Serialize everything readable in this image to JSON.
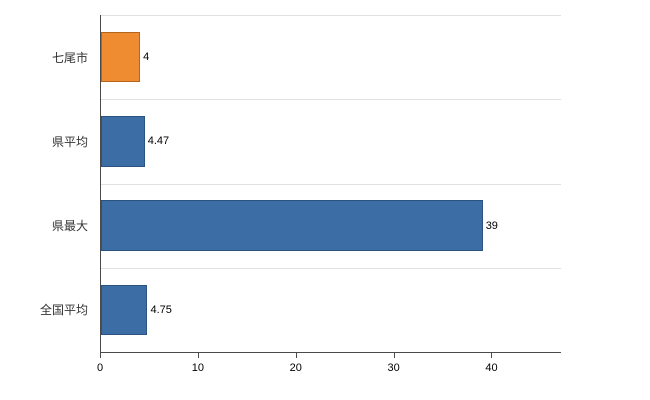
{
  "chart_data": {
    "type": "bar",
    "orientation": "horizontal",
    "title": "",
    "xlabel": "",
    "ylabel": "",
    "categories": [
      "七尾市",
      "県平均",
      "県最大",
      "全国平均"
    ],
    "values": [
      4,
      4.47,
      39,
      4.75
    ],
    "value_labels": [
      "4",
      "4.47",
      "39",
      "4.75"
    ],
    "bar_colors": [
      "#ef8b31",
      "#3c6da5",
      "#3c6da5",
      "#3c6da5"
    ],
    "bar_border_colors": [
      "#b5651d",
      "#2a5380",
      "#2a5380",
      "#2a5380"
    ],
    "x_ticks": [
      0,
      10,
      20,
      30,
      40
    ],
    "xlim": [
      0,
      47
    ],
    "grid": "horizontal-light",
    "legend": "none"
  },
  "colors": {
    "background": "#ffffff",
    "axis": "#4a4a4a",
    "gridline": "#e2e2e2",
    "label_text": "#333333",
    "value_text": "#000000"
  }
}
